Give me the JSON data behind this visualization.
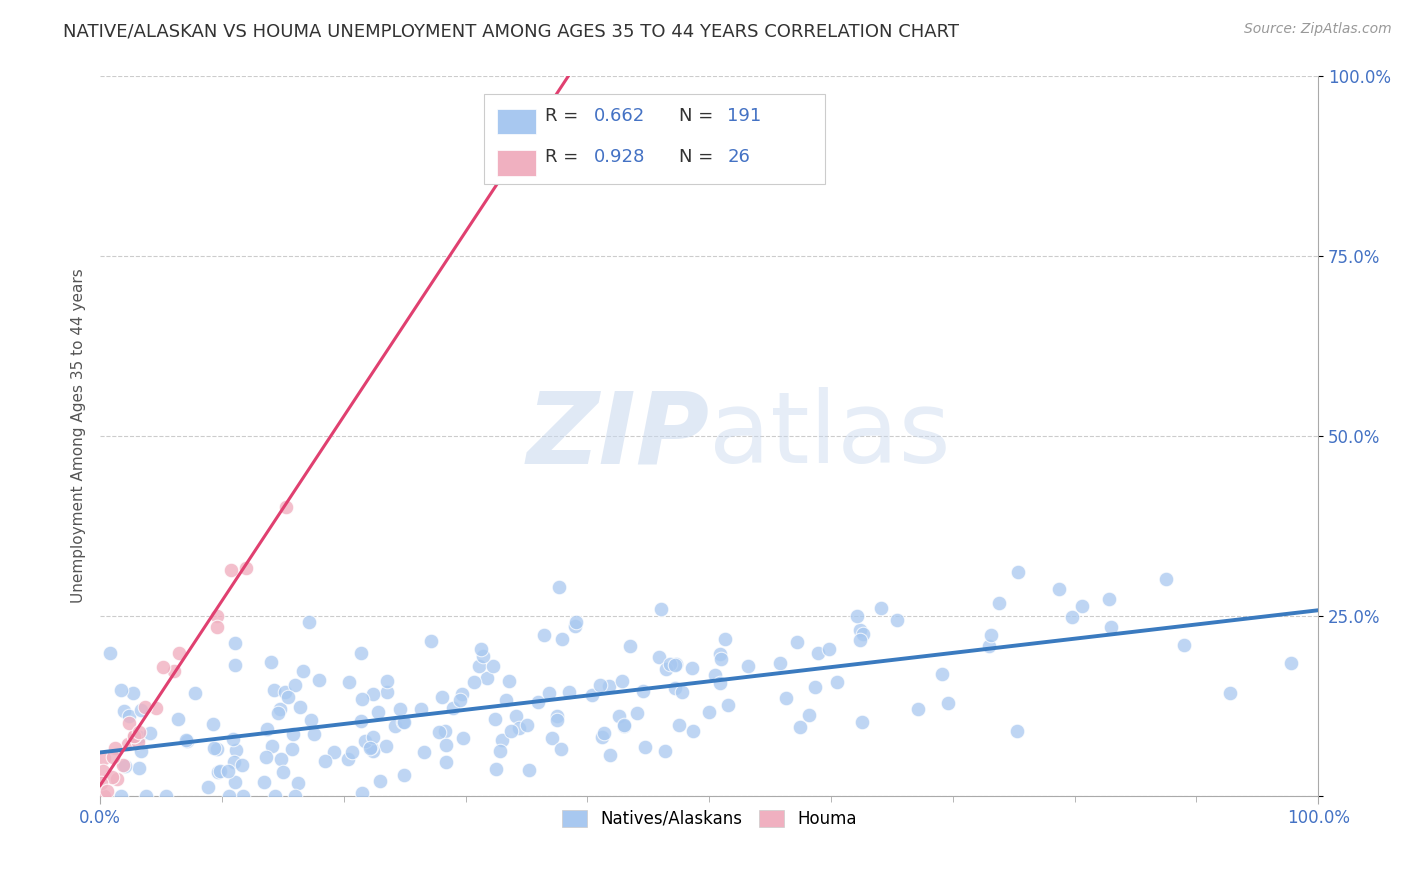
{
  "title": "NATIVE/ALASKAN VS HOUMA UNEMPLOYMENT AMONG AGES 35 TO 44 YEARS CORRELATION CHART",
  "source": "Source: ZipAtlas.com",
  "ylabel": "Unemployment Among Ages 35 to 44 years",
  "xlim": [
    0,
    1.0
  ],
  "ylim": [
    0,
    1.0
  ],
  "grid_color": "#cccccc",
  "background_color": "#ffffff",
  "watermark_zip": "ZIP",
  "watermark_atlas": "atlas",
  "native_color": "#a8c8f0",
  "native_line_color": "#3a7abf",
  "native_R": 0.662,
  "native_N": 191,
  "houma_color": "#f0b0c0",
  "houma_line_color": "#e04070",
  "houma_R": 0.928,
  "houma_N": 26,
  "title_fontsize": 13,
  "source_fontsize": 10,
  "tick_color": "#4472c4",
  "tick_fontsize": 12,
  "ylabel_fontsize": 11,
  "ylabel_color": "#555555"
}
